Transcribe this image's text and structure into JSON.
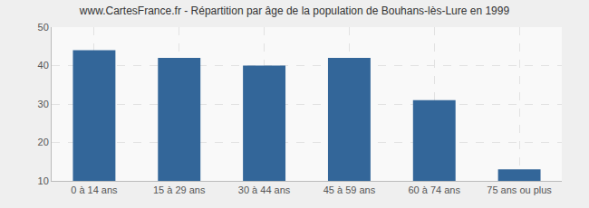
{
  "chart_data": {
    "type": "bar",
    "title": "www.CartesFrance.fr - Répartition par âge de la population de Bouhans-lès-Lure en 1999",
    "categories": [
      "0 à 14 ans",
      "15 à 29 ans",
      "30 à 44 ans",
      "45 à 59 ans",
      "60 à 74 ans",
      "75 ans ou plus"
    ],
    "values": [
      44,
      42,
      40,
      42,
      31,
      13
    ],
    "color": "#336699",
    "ylim": [
      10,
      50
    ],
    "yticks": [
      10,
      20,
      30,
      40,
      50
    ],
    "grid": true
  }
}
